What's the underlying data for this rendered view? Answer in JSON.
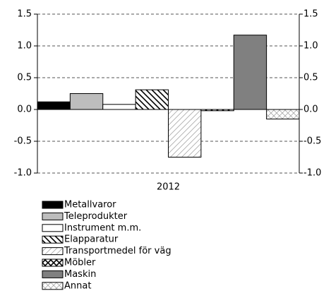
{
  "chart_data": {
    "type": "bar",
    "categories": [
      "2012"
    ],
    "series": [
      {
        "name": "Metallvaror",
        "color": "#000000",
        "pattern": "solid",
        "values": [
          0.12
        ]
      },
      {
        "name": "Teleprodukter",
        "color": "#bdbdbd",
        "pattern": "solid",
        "values": [
          0.25
        ]
      },
      {
        "name": "Instrument m.m.",
        "color": "#ffffff",
        "pattern": "solid",
        "values": [
          0.08
        ]
      },
      {
        "name": "Elapparatur",
        "color": "#000000",
        "pattern": "backslash",
        "values": [
          0.31
        ]
      },
      {
        "name": "Transportmedel för väg",
        "color": "#aaaaaa",
        "pattern": "slash",
        "values": [
          -0.75
        ]
      },
      {
        "name": "Möbler",
        "color": "#000000",
        "pattern": "cross",
        "values": [
          -0.02
        ]
      },
      {
        "name": "Maskin",
        "color": "#808080",
        "pattern": "solid",
        "values": [
          1.17
        ]
      },
      {
        "name": "Annat",
        "color": "#aaaaaa",
        "pattern": "cross",
        "values": [
          -0.15
        ]
      }
    ],
    "ylim": [
      -1.0,
      1.5
    ],
    "yticks": [
      {
        "value": -1.0,
        "label": "-1.0"
      },
      -0.5,
      {
        "value": 0.0,
        "label": "0.0"
      },
      0.5,
      {
        "value": 1.0,
        "label": "1.0"
      },
      1.5
    ],
    "y2lim": [
      -1.0,
      1.5
    ],
    "y2ticks": [
      {
        "value": -1.0,
        "label": "-1.0"
      },
      -0.5,
      {
        "value": 0.0,
        "label": "0.0"
      },
      0.5,
      {
        "value": 1.0,
        "label": "1.0"
      },
      1.5
    ],
    "grid": true
  }
}
